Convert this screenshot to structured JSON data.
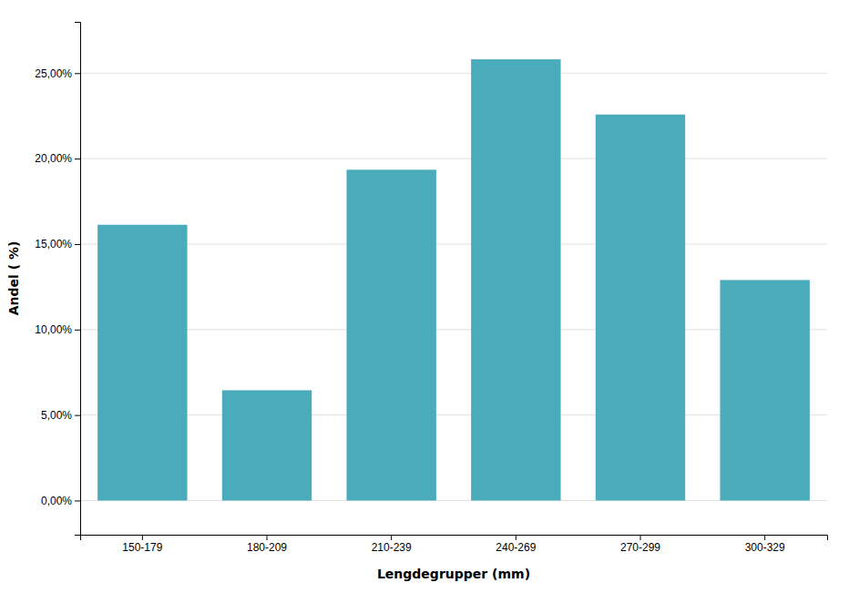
{
  "chart_data": {
    "type": "bar",
    "xlabel": "Lengdegrupper (mm)",
    "ylabel": "Andel ( %)",
    "categories": [
      "150-179",
      "180-209",
      "210-239",
      "240-269",
      "270-299",
      "300-329"
    ],
    "values": [
      0.1613,
      0.0645,
      0.1935,
      0.2581,
      0.2258,
      0.129
    ],
    "color": "#4AACBB",
    "ylim": [
      -0.02,
      0.28
    ],
    "yticks": [
      {
        "value": 0.0,
        "label": "0,00%"
      },
      {
        "value": 0.05,
        "label": "5,00%"
      },
      {
        "value": 0.1,
        "label": "10,00%"
      },
      {
        "value": 0.15,
        "label": "15,00%"
      },
      {
        "value": 0.2,
        "label": "20,00%"
      },
      {
        "value": 0.25,
        "label": "25,00%"
      }
    ],
    "grid": true
  }
}
